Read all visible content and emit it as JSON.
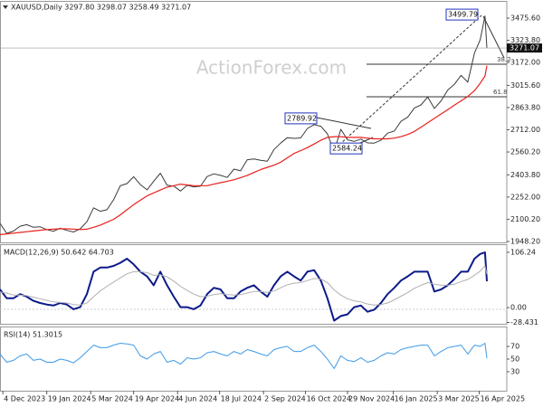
{
  "chart_data": [
    {
      "type": "line",
      "title": "XAUUSD,Daily 3297.80 3298.07 3258.49 3271.07",
      "watermark": "ActionForex.com",
      "x": [
        "2023-12-01",
        "2023-12-08",
        "2023-12-15",
        "2023-12-22",
        "2023-12-29",
        "2024-01-05",
        "2024-01-12",
        "2024-01-19",
        "2024-01-26",
        "2024-02-02",
        "2024-02-09",
        "2024-02-16",
        "2024-02-23",
        "2024-03-01",
        "2024-03-08",
        "2024-03-15",
        "2024-03-22",
        "2024-03-29",
        "2024-04-05",
        "2024-04-12",
        "2024-04-19",
        "2024-04-26",
        "2024-05-03",
        "2024-05-10",
        "2024-05-17",
        "2024-05-24",
        "2024-05-31",
        "2024-06-07",
        "2024-06-14",
        "2024-06-21",
        "2024-06-28",
        "2024-07-05",
        "2024-07-12",
        "2024-07-19",
        "2024-07-26",
        "2024-08-02",
        "2024-08-09",
        "2024-08-16",
        "2024-08-23",
        "2024-08-30",
        "2024-09-06",
        "2024-09-13",
        "2024-09-20",
        "2024-09-27",
        "2024-10-04",
        "2024-10-11",
        "2024-10-18",
        "2024-10-25",
        "2024-11-01",
        "2024-11-08",
        "2024-11-15",
        "2024-11-22",
        "2024-11-29",
        "2024-12-06",
        "2024-12-13",
        "2024-12-20",
        "2024-12-27",
        "2025-01-03",
        "2025-01-10",
        "2025-01-17",
        "2025-01-24",
        "2025-01-31",
        "2025-02-07",
        "2025-02-14",
        "2025-02-21",
        "2025-02-28",
        "2025-03-07",
        "2025-03-14",
        "2025-03-21",
        "2025-03-28",
        "2025-04-04",
        "2025-04-11",
        "2025-04-17",
        "2025-04-22",
        "2025-04-24"
      ],
      "xlim": [
        "2023-12-01",
        "2025-05-12"
      ],
      "xticks": [
        {
          "value": "2023-12-04",
          "label": "4 Dec 2023"
        },
        {
          "value": "2024-01-19",
          "label": "19 Jan 2024"
        },
        {
          "value": "2024-03-05",
          "label": "5 Mar 2024"
        },
        {
          "value": "2024-04-19",
          "label": "19 Apr 2024"
        },
        {
          "value": "2024-06-04",
          "label": "4 Jun 2024"
        },
        {
          "value": "2024-07-18",
          "label": "18 Jul 2024"
        },
        {
          "value": "2024-09-02",
          "label": "2 Sep 2024"
        },
        {
          "value": "2024-10-16",
          "label": "16 Oct 2024"
        },
        {
          "value": "2024-11-29",
          "label": "29 Nov 2024"
        },
        {
          "value": "2025-01-16",
          "label": "16 Jan 2025"
        },
        {
          "value": "2025-03-03",
          "label": "3 Mar 2025"
        },
        {
          "value": "2025-04-16",
          "label": "16 Apr 2025"
        }
      ],
      "ylim": [
        1942,
        3587
      ],
      "yticks": [
        {
          "value": 3475.6,
          "label": "3475.60"
        },
        {
          "value": 3323.8,
          "label": "3323.80"
        },
        {
          "value": 3172,
          "label": "3172.00"
        },
        {
          "value": 3015.6,
          "label": "3015.60"
        },
        {
          "value": 2863.8,
          "label": "2863.80"
        },
        {
          "value": 2712,
          "label": "2712.00"
        },
        {
          "value": 2560.2,
          "label": "2560.20"
        },
        {
          "value": 2403.8,
          "label": "2403.80"
        },
        {
          "value": 2252,
          "label": "2252.00"
        },
        {
          "value": 2100.2,
          "label": "2100.20"
        },
        {
          "value": 1948.2,
          "label": "1948.20"
        }
      ],
      "last_price": 3271.07,
      "annotations": [
        3499.79,
        2789.92,
        2584.24,
        38.2,
        61.8
      ],
      "series": [
        {
          "color": "#3a3a3a",
          "values": [
            2072,
            2004,
            2019,
            2053,
            2063,
            2045,
            2049,
            2029,
            2018,
            2039,
            2024,
            2013,
            2035,
            2083,
            2178,
            2155,
            2165,
            2233,
            2329,
            2344,
            2391,
            2337,
            2301,
            2360,
            2415,
            2333,
            2327,
            2293,
            2332,
            2322,
            2326,
            2392,
            2411,
            2400,
            2386,
            2443,
            2431,
            2507,
            2512,
            2503,
            2497,
            2577,
            2621,
            2658,
            2653,
            2656,
            2721,
            2747,
            2736,
            2684,
            2563,
            2715,
            2643,
            2633,
            2648,
            2622,
            2621,
            2640,
            2689,
            2703,
            2770,
            2798,
            2861,
            2882,
            2936,
            2858,
            2910,
            2984,
            3023,
            3084,
            3037,
            3237,
            3327,
            3490,
            3271.07
          ]
        },
        {
          "color": "#e8201c",
          "values": [
            1995,
            2000,
            2005,
            2010,
            2015,
            2020,
            2025,
            2030,
            2032,
            2035,
            2035,
            2033,
            2030,
            2032,
            2045,
            2060,
            2080,
            2100,
            2130,
            2165,
            2200,
            2230,
            2260,
            2280,
            2300,
            2320,
            2330,
            2340,
            2335,
            2330,
            2330,
            2330,
            2340,
            2350,
            2360,
            2370,
            2385,
            2400,
            2420,
            2440,
            2455,
            2470,
            2490,
            2520,
            2550,
            2570,
            2590,
            2615,
            2640,
            2660,
            2665,
            2665,
            2660,
            2660,
            2660,
            2655,
            2650,
            2650,
            2650,
            2655,
            2665,
            2680,
            2700,
            2730,
            2760,
            2790,
            2820,
            2850,
            2880,
            2910,
            2940,
            2980,
            3030,
            3080,
            3150
          ]
        }
      ]
    },
    {
      "type": "line",
      "title": "MACD(12,26,9) 50.642 64.703",
      "ylim": [
        -31,
        120
      ],
      "yticks": [
        106.24,
        {
          "value": 0,
          "label": "0.00"
        },
        -28.431
      ],
      "series": [
        {
          "color": "#0c1a8a",
          "values": [
            35,
            18,
            18,
            26,
            21,
            13,
            9,
            6,
            4,
            9,
            6,
            -3,
            1,
            26,
            69,
            77,
            77,
            80,
            86,
            94,
            83,
            69,
            60,
            43,
            69,
            43,
            21,
            1,
            1,
            -3,
            4,
            26,
            38,
            35,
            18,
            18,
            31,
            38,
            43,
            31,
            21,
            43,
            60,
            69,
            60,
            52,
            69,
            72,
            52,
            18,
            -25,
            -16,
            -13,
            1,
            4,
            -8,
            -4,
            9,
            26,
            38,
            52,
            60,
            69,
            69,
            69,
            31,
            35,
            43,
            55,
            69,
            69,
            94,
            103,
            106,
            50.642
          ]
        },
        {
          "color": "#b0b0b0",
          "values": [
            30,
            28,
            24,
            24,
            23,
            20,
            17,
            14,
            11,
            10,
            9,
            6,
            5,
            9,
            21,
            32,
            41,
            49,
            57,
            65,
            69,
            69,
            67,
            62,
            63,
            59,
            51,
            41,
            33,
            26,
            21,
            22,
            25,
            27,
            25,
            24,
            25,
            28,
            31,
            31,
            29,
            32,
            38,
            44,
            47,
            48,
            52,
            56,
            55,
            48,
            34,
            24,
            17,
            13,
            11,
            7,
            5,
            6,
            9,
            15,
            22,
            29,
            37,
            43,
            48,
            45,
            43,
            43,
            45,
            50,
            54,
            62,
            70,
            80,
            64.703
          ]
        }
      ]
    },
    {
      "type": "line",
      "title": "RSI(14) 51.3015",
      "ylim": [
        0,
        100
      ],
      "yticks": [
        70,
        50,
        30
      ],
      "series": [
        {
          "color": "#3d9be9",
          "values": [
            58,
            45,
            48,
            55,
            58,
            48,
            50,
            45,
            45,
            50,
            48,
            44,
            52,
            62,
            72,
            68,
            68,
            72,
            75,
            74,
            72,
            55,
            50,
            58,
            62,
            45,
            48,
            42,
            52,
            50,
            52,
            60,
            62,
            58,
            55,
            62,
            58,
            65,
            62,
            58,
            55,
            65,
            68,
            70,
            62,
            62,
            68,
            72,
            62,
            50,
            35,
            55,
            48,
            46,
            52,
            45,
            48,
            55,
            60,
            58,
            65,
            68,
            70,
            72,
            72,
            55,
            62,
            68,
            70,
            72,
            58,
            72,
            70,
            75,
            51.3015
          ]
        }
      ]
    }
  ]
}
